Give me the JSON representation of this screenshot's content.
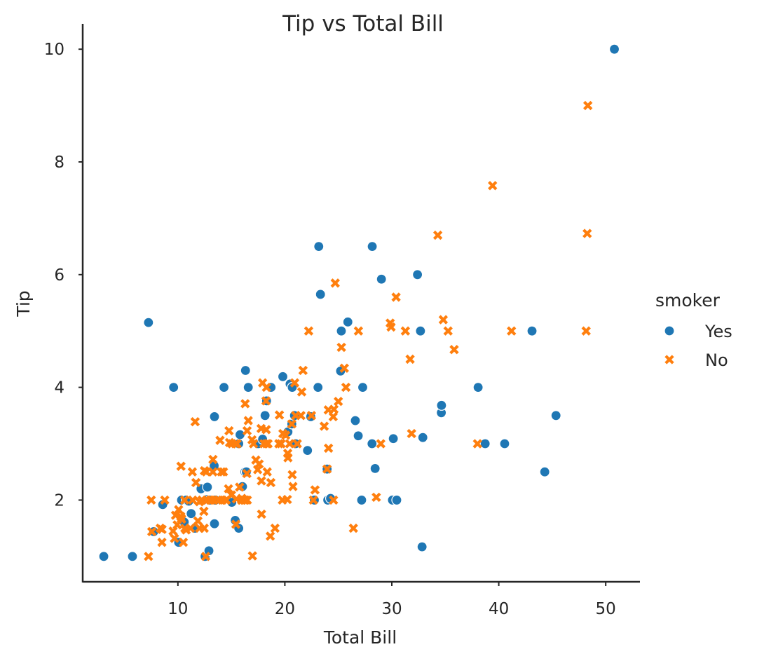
{
  "chart_data": {
    "type": "scatter",
    "title": "Tip vs Total Bill",
    "xlabel": "Total Bill",
    "ylabel": "Tip",
    "xlim": [
      1.1,
      53.2
    ],
    "ylim": [
      0.55,
      10.45
    ],
    "xticks": [
      10,
      20,
      30,
      40,
      50
    ],
    "yticks": [
      2,
      4,
      6,
      8,
      10
    ],
    "grid": false,
    "legend": {
      "title": "smoker",
      "placement": "right-outside"
    },
    "series": [
      {
        "name": "Yes",
        "color": "#1f77b4",
        "marker": "circle",
        "points": [
          [
            3.07,
            1.0
          ],
          [
            5.75,
            1.0
          ],
          [
            7.25,
            5.15
          ],
          [
            7.74,
            1.44
          ],
          [
            8.58,
            1.92
          ],
          [
            9.6,
            4.0
          ],
          [
            10.07,
            1.25
          ],
          [
            10.34,
            2.0
          ],
          [
            10.59,
            1.61
          ],
          [
            10.77,
            2.0
          ],
          [
            11.02,
            1.98
          ],
          [
            11.24,
            1.76
          ],
          [
            11.59,
            1.5
          ],
          [
            12.16,
            2.2
          ],
          [
            12.54,
            1.0
          ],
          [
            12.74,
            2.01
          ],
          [
            12.76,
            2.23
          ],
          [
            12.9,
            1.1
          ],
          [
            13.0,
            2.0
          ],
          [
            13.39,
            2.61
          ],
          [
            13.42,
            3.48
          ],
          [
            13.42,
            1.58
          ],
          [
            13.51,
            2.0
          ],
          [
            14.31,
            4.0
          ],
          [
            15.04,
            1.96
          ],
          [
            15.36,
            1.64
          ],
          [
            15.69,
            1.5
          ],
          [
            15.69,
            3.0
          ],
          [
            15.81,
            3.16
          ],
          [
            16.04,
            2.24
          ],
          [
            16.27,
            2.5
          ],
          [
            16.32,
            4.3
          ],
          [
            16.4,
            2.5
          ],
          [
            16.58,
            4.0
          ],
          [
            17.51,
            3.0
          ],
          [
            17.92,
            3.08
          ],
          [
            18.15,
            3.5
          ],
          [
            18.29,
            3.76
          ],
          [
            18.71,
            4.0
          ],
          [
            19.81,
            4.19
          ],
          [
            20.29,
            3.21
          ],
          [
            20.49,
            4.06
          ],
          [
            20.65,
            3.35
          ],
          [
            20.69,
            4.0
          ],
          [
            20.9,
            3.5
          ],
          [
            21.01,
            3.0
          ],
          [
            22.12,
            2.88
          ],
          [
            22.42,
            3.48
          ],
          [
            22.76,
            2.0
          ],
          [
            23.1,
            4.0
          ],
          [
            23.17,
            6.5
          ],
          [
            23.33,
            5.65
          ],
          [
            23.95,
            2.55
          ],
          [
            24.01,
            2.0
          ],
          [
            24.27,
            2.03
          ],
          [
            25.21,
            4.29
          ],
          [
            25.28,
            5.0
          ],
          [
            25.89,
            5.16
          ],
          [
            26.59,
            3.41
          ],
          [
            26.86,
            3.14
          ],
          [
            27.18,
            2.0
          ],
          [
            27.28,
            4.0
          ],
          [
            28.15,
            3.0
          ],
          [
            28.17,
            6.5
          ],
          [
            28.44,
            2.56
          ],
          [
            29.03,
            5.92
          ],
          [
            30.06,
            2.0
          ],
          [
            30.14,
            3.09
          ],
          [
            30.46,
            2.0
          ],
          [
            32.4,
            6.0
          ],
          [
            32.68,
            5.0
          ],
          [
            32.83,
            1.17
          ],
          [
            32.9,
            3.11
          ],
          [
            34.63,
            3.55
          ],
          [
            34.65,
            3.68
          ],
          [
            38.07,
            4.0
          ],
          [
            38.73,
            3.0
          ],
          [
            40.55,
            3.0
          ],
          [
            43.11,
            5.0
          ],
          [
            44.3,
            2.5
          ],
          [
            45.35,
            3.5
          ],
          [
            50.81,
            10.0
          ]
        ]
      },
      {
        "name": "No",
        "color": "#ff7f0e",
        "marker": "x",
        "points": [
          [
            7.25,
            1.0
          ],
          [
            7.51,
            2.0
          ],
          [
            7.56,
            1.44
          ],
          [
            8.35,
            1.5
          ],
          [
            8.51,
            1.25
          ],
          [
            8.52,
            1.48
          ],
          [
            8.77,
            2.0
          ],
          [
            9.55,
            1.45
          ],
          [
            9.68,
            1.32
          ],
          [
            9.78,
            1.73
          ],
          [
            9.94,
            1.56
          ],
          [
            10.07,
            1.83
          ],
          [
            10.27,
            1.71
          ],
          [
            10.29,
            2.6
          ],
          [
            10.33,
            1.67
          ],
          [
            10.34,
            1.66
          ],
          [
            10.51,
            1.25
          ],
          [
            10.63,
            2.0
          ],
          [
            10.65,
            1.5
          ],
          [
            10.77,
            1.47
          ],
          [
            11.17,
            1.5
          ],
          [
            11.35,
            2.5
          ],
          [
            11.38,
            2.0
          ],
          [
            11.61,
            3.39
          ],
          [
            11.69,
            2.31
          ],
          [
            11.87,
            1.63
          ],
          [
            12.02,
            1.97
          ],
          [
            12.03,
            1.5
          ],
          [
            12.26,
            2.0
          ],
          [
            12.43,
            1.8
          ],
          [
            12.46,
            1.5
          ],
          [
            12.48,
            2.52
          ],
          [
            12.6,
            1.0
          ],
          [
            12.66,
            2.5
          ],
          [
            12.69,
            2.0
          ],
          [
            13.03,
            2.0
          ],
          [
            13.13,
            2.0
          ],
          [
            13.27,
            2.5
          ],
          [
            13.28,
            2.72
          ],
          [
            13.37,
            2.0
          ],
          [
            13.81,
            2.0
          ],
          [
            13.94,
            3.06
          ],
          [
            14.07,
            2.5
          ],
          [
            14.15,
            2.0
          ],
          [
            14.26,
            2.5
          ],
          [
            14.48,
            2.0
          ],
          [
            14.52,
            2.0
          ],
          [
            14.73,
            2.2
          ],
          [
            14.78,
            3.23
          ],
          [
            14.83,
            3.02
          ],
          [
            15.01,
            2.09
          ],
          [
            15.06,
            3.0
          ],
          [
            15.38,
            3.0
          ],
          [
            15.42,
            1.57
          ],
          [
            15.48,
            2.02
          ],
          [
            15.53,
            3.0
          ],
          [
            15.77,
            2.23
          ],
          [
            15.95,
            2.0
          ],
          [
            15.98,
            2.03
          ],
          [
            16.0,
            2.0
          ],
          [
            16.21,
            2.0
          ],
          [
            16.29,
            3.71
          ],
          [
            16.31,
            2.0
          ],
          [
            16.45,
            2.47
          ],
          [
            16.47,
            3.23
          ],
          [
            16.49,
            2.0
          ],
          [
            16.58,
            3.41
          ],
          [
            16.93,
            3.07
          ],
          [
            16.97,
            1.01
          ],
          [
            17.07,
            3.0
          ],
          [
            17.29,
            2.71
          ],
          [
            17.46,
            2.54
          ],
          [
            17.59,
            2.64
          ],
          [
            17.78,
            3.27
          ],
          [
            17.81,
            2.34
          ],
          [
            17.82,
            1.75
          ],
          [
            17.92,
            4.08
          ],
          [
            18.04,
            3.0
          ],
          [
            18.24,
            3.76
          ],
          [
            18.26,
            3.25
          ],
          [
            18.28,
            4.0
          ],
          [
            18.29,
            3.0
          ],
          [
            18.35,
            2.5
          ],
          [
            18.43,
            3.0
          ],
          [
            18.64,
            1.36
          ],
          [
            18.69,
            2.31
          ],
          [
            19.08,
            1.5
          ],
          [
            19.44,
            3.0
          ],
          [
            19.49,
            3.51
          ],
          [
            19.65,
            3.0
          ],
          [
            19.77,
            2.0
          ],
          [
            19.82,
            3.18
          ],
          [
            20.08,
            3.15
          ],
          [
            20.23,
            2.01
          ],
          [
            20.27,
            2.83
          ],
          [
            20.29,
            2.75
          ],
          [
            20.45,
            3.0
          ],
          [
            20.65,
            3.35
          ],
          [
            20.69,
            2.45
          ],
          [
            20.76,
            2.24
          ],
          [
            20.92,
            4.08
          ],
          [
            21.01,
            3.5
          ],
          [
            21.16,
            3.0
          ],
          [
            21.5,
            3.5
          ],
          [
            21.58,
            3.92
          ],
          [
            21.7,
            4.3
          ],
          [
            22.23,
            5.0
          ],
          [
            22.49,
            3.5
          ],
          [
            22.67,
            2.0
          ],
          [
            22.82,
            2.18
          ],
          [
            23.68,
            3.31
          ],
          [
            23.95,
            2.55
          ],
          [
            24.06,
            3.6
          ],
          [
            24.08,
            2.92
          ],
          [
            24.52,
            3.48
          ],
          [
            24.55,
            2.0
          ],
          [
            24.59,
            3.61
          ],
          [
            24.71,
            5.85
          ],
          [
            25.0,
            3.75
          ],
          [
            25.29,
            4.71
          ],
          [
            25.56,
            4.34
          ],
          [
            25.71,
            4.0
          ],
          [
            26.41,
            1.5
          ],
          [
            26.88,
            5.0
          ],
          [
            28.55,
            2.05
          ],
          [
            28.97,
            3.0
          ],
          [
            29.85,
            5.14
          ],
          [
            29.93,
            5.07
          ],
          [
            30.4,
            5.6
          ],
          [
            31.27,
            5.0
          ],
          [
            31.85,
            3.18
          ],
          [
            31.71,
            4.5
          ],
          [
            34.3,
            6.7
          ],
          [
            34.81,
            5.2
          ],
          [
            35.26,
            5.0
          ],
          [
            35.83,
            4.67
          ],
          [
            38.01,
            3.0
          ],
          [
            39.42,
            7.58
          ],
          [
            41.19,
            5.0
          ],
          [
            48.17,
            5.0
          ],
          [
            48.27,
            6.73
          ],
          [
            48.33,
            9.0
          ]
        ]
      }
    ]
  }
}
